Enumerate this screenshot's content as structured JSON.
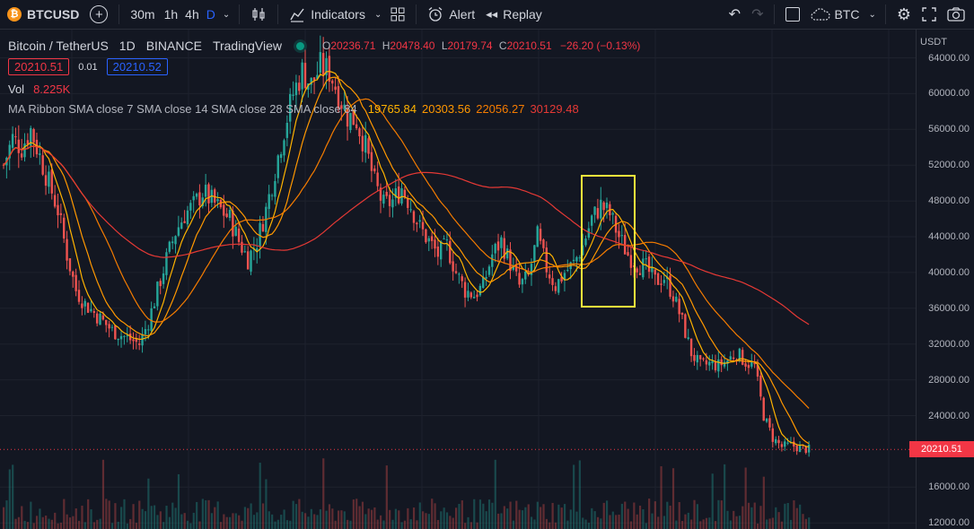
{
  "toolbar": {
    "symbol": "BTCUSD",
    "timeframes": [
      "30m",
      "1h",
      "4h",
      "D"
    ],
    "active_timeframe": "D",
    "indicators_label": "Indicators",
    "alert_label": "Alert",
    "replay_label": "Replay",
    "currency_label": "BTC"
  },
  "legend": {
    "title": "Bitcoin / TetherUS",
    "interval": "1D",
    "exchange": "BINANCE",
    "source": "TradingView",
    "o_label": "O",
    "o_value": "20236.71",
    "h_label": "H",
    "h_value": "20478.40",
    "l_label": "L",
    "l_value": "20179.74",
    "c_label": "C",
    "c_value": "20210.51",
    "change": "−26.20 (−0.13%)",
    "bid": "20210.51",
    "spread": "0.01",
    "ask": "20210.52",
    "vol_label": "Vol",
    "vol_value": "8.225K",
    "ma_label": "MA Ribbon SMA close 7 SMA close 14 SMA close 28 SMA close 84",
    "ma_values": [
      "19765.84",
      "20303.56",
      "22056.27",
      "30129.48"
    ]
  },
  "price_axis": {
    "currency": "USDT",
    "ticks": [
      "64000.00",
      "60000.00",
      "56000.00",
      "52000.00",
      "48000.00",
      "44000.00",
      "40000.00",
      "36000.00",
      "32000.00",
      "28000.00",
      "24000.00",
      "16000.00",
      "12000.00"
    ],
    "last_price": "20210.51"
  },
  "colors": {
    "up": "#26a69a",
    "down": "#ef5350",
    "sma7": "#ffb300",
    "sma14": "#ff9800",
    "sma28": "#f57c00",
    "sma84": "#e53935",
    "highlight_box": "#ffeb3b",
    "accent": "#2962ff"
  },
  "chart_data": {
    "type": "candlestick",
    "price_range": [
      12000,
      66000
    ],
    "close_path": [
      [
        0,
        52000
      ],
      [
        3,
        55000
      ],
      [
        6,
        54000
      ],
      [
        9,
        56000
      ],
      [
        12,
        53000
      ],
      [
        15,
        50000
      ],
      [
        18,
        47000
      ],
      [
        21,
        42000
      ],
      [
        24,
        38000
      ],
      [
        27,
        36500
      ],
      [
        30,
        35500
      ],
      [
        33,
        34500
      ],
      [
        36,
        33500
      ],
      [
        39,
        33000
      ],
      [
        42,
        32500
      ],
      [
        45,
        32000
      ],
      [
        48,
        34500
      ],
      [
        51,
        38000
      ],
      [
        54,
        41500
      ],
      [
        57,
        44500
      ],
      [
        60,
        46500
      ],
      [
        63,
        47500
      ],
      [
        66,
        49000
      ],
      [
        69,
        48000
      ],
      [
        72,
        47000
      ],
      [
        75,
        46000
      ],
      [
        78,
        43500
      ],
      [
        81,
        41500
      ],
      [
        84,
        43500
      ],
      [
        87,
        47000
      ],
      [
        90,
        51500
      ],
      [
        93,
        56000
      ],
      [
        96,
        60000
      ],
      [
        99,
        62500
      ],
      [
        102,
        61000
      ],
      [
        105,
        63000
      ],
      [
        108,
        62500
      ],
      [
        111,
        60000
      ],
      [
        114,
        57500
      ],
      [
        117,
        57000
      ],
      [
        120,
        54000
      ],
      [
        123,
        50000
      ],
      [
        126,
        47500
      ],
      [
        129,
        48000
      ],
      [
        132,
        49500
      ],
      [
        135,
        47500
      ],
      [
        138,
        45000
      ],
      [
        141,
        43500
      ],
      [
        144,
        42000
      ],
      [
        147,
        43000
      ],
      [
        150,
        40000
      ],
      [
        153,
        38000
      ],
      [
        156,
        37500
      ],
      [
        159,
        38500
      ],
      [
        162,
        42000
      ],
      [
        165,
        43500
      ],
      [
        168,
        41000
      ],
      [
        171,
        38500
      ],
      [
        174,
        39500
      ],
      [
        177,
        44000
      ],
      [
        180,
        40500
      ],
      [
        183,
        38500
      ],
      [
        186,
        40000
      ],
      [
        189,
        41000
      ],
      [
        192,
        43000
      ],
      [
        195,
        46000
      ],
      [
        198,
        47500
      ],
      [
        201,
        46500
      ],
      [
        204,
        44000
      ],
      [
        207,
        42000
      ],
      [
        210,
        41000
      ],
      [
        213,
        40500
      ],
      [
        216,
        39000
      ],
      [
        219,
        39500
      ],
      [
        222,
        37500
      ],
      [
        225,
        34500
      ],
      [
        228,
        31000
      ],
      [
        231,
        29500
      ],
      [
        234,
        29800
      ],
      [
        237,
        29600
      ],
      [
        240,
        30200
      ],
      [
        243,
        31000
      ],
      [
        246,
        30000
      ],
      [
        249,
        29500
      ],
      [
        252,
        24000
      ],
      [
        255,
        21500
      ],
      [
        258,
        20500
      ],
      [
        261,
        20700
      ],
      [
        264,
        20400
      ],
      [
        267,
        20210
      ]
    ]
  },
  "annotation": {
    "highlight_box_label": ""
  }
}
